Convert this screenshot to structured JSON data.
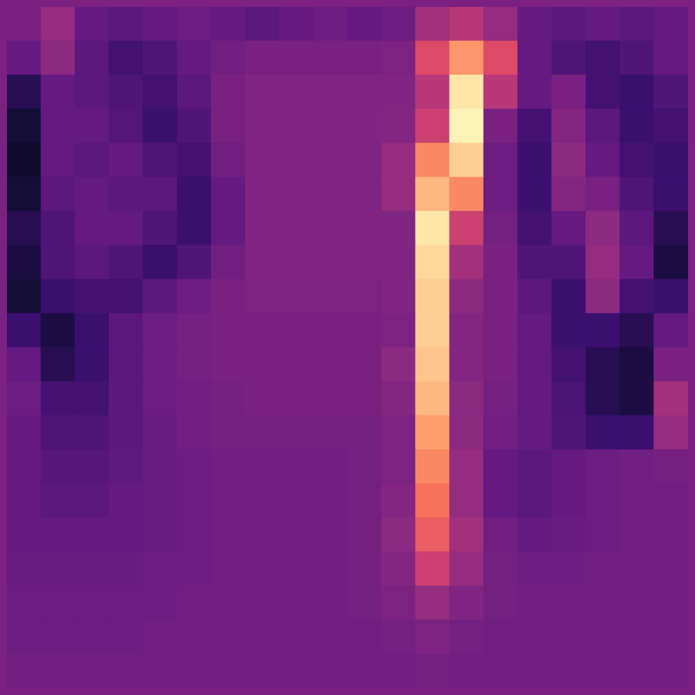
{
  "chart_data": {
    "type": "heatmap",
    "tick_labels": false,
    "color_range": [
      0,
      1
    ],
    "cells": [
      [
        0.35,
        0.42,
        0.3,
        0.28,
        0.3,
        0.32,
        0.3,
        0.28,
        0.3,
        0.32,
        0.3,
        0.32,
        0.45,
        0.5,
        0.42,
        0.3,
        0.28,
        0.3,
        0.28,
        0.3
      ],
      [
        0.3,
        0.4,
        0.28,
        0.22,
        0.25,
        0.3,
        0.33,
        0.35,
        0.35,
        0.35,
        0.35,
        0.36,
        0.6,
        0.78,
        0.6,
        0.3,
        0.25,
        0.22,
        0.25,
        0.3
      ],
      [
        0.15,
        0.3,
        0.28,
        0.25,
        0.22,
        0.28,
        0.35,
        0.37,
        0.37,
        0.37,
        0.37,
        0.37,
        0.5,
        0.95,
        0.5,
        0.3,
        0.35,
        0.22,
        0.2,
        0.25
      ],
      [
        0.1,
        0.3,
        0.3,
        0.26,
        0.2,
        0.25,
        0.35,
        0.37,
        0.37,
        0.37,
        0.37,
        0.38,
        0.55,
        0.98,
        0.35,
        0.22,
        0.38,
        0.28,
        0.2,
        0.22
      ],
      [
        0.08,
        0.3,
        0.28,
        0.3,
        0.25,
        0.22,
        0.33,
        0.37,
        0.37,
        0.37,
        0.37,
        0.42,
        0.75,
        0.9,
        0.32,
        0.2,
        0.4,
        0.3,
        0.22,
        0.2
      ],
      [
        0.1,
        0.28,
        0.3,
        0.28,
        0.28,
        0.2,
        0.3,
        0.37,
        0.37,
        0.37,
        0.37,
        0.42,
        0.85,
        0.75,
        0.32,
        0.2,
        0.38,
        0.35,
        0.25,
        0.2
      ],
      [
        0.15,
        0.25,
        0.3,
        0.3,
        0.25,
        0.2,
        0.3,
        0.37,
        0.37,
        0.37,
        0.37,
        0.37,
        0.95,
        0.55,
        0.34,
        0.22,
        0.3,
        0.4,
        0.28,
        0.15
      ],
      [
        0.12,
        0.25,
        0.28,
        0.25,
        0.2,
        0.25,
        0.33,
        0.37,
        0.37,
        0.37,
        0.37,
        0.37,
        0.92,
        0.45,
        0.35,
        0.25,
        0.25,
        0.42,
        0.3,
        0.12
      ],
      [
        0.1,
        0.2,
        0.22,
        0.22,
        0.28,
        0.32,
        0.35,
        0.36,
        0.36,
        0.36,
        0.36,
        0.37,
        0.9,
        0.4,
        0.35,
        0.28,
        0.2,
        0.4,
        0.22,
        0.2
      ],
      [
        0.2,
        0.12,
        0.2,
        0.28,
        0.32,
        0.34,
        0.35,
        0.35,
        0.35,
        0.35,
        0.35,
        0.36,
        0.9,
        0.38,
        0.35,
        0.3,
        0.2,
        0.2,
        0.15,
        0.3
      ],
      [
        0.3,
        0.15,
        0.2,
        0.28,
        0.32,
        0.34,
        0.35,
        0.35,
        0.35,
        0.35,
        0.35,
        0.4,
        0.88,
        0.38,
        0.35,
        0.3,
        0.22,
        0.15,
        0.12,
        0.35
      ],
      [
        0.32,
        0.22,
        0.22,
        0.28,
        0.32,
        0.33,
        0.34,
        0.35,
        0.35,
        0.35,
        0.35,
        0.38,
        0.85,
        0.4,
        0.34,
        0.3,
        0.24,
        0.15,
        0.12,
        0.45
      ],
      [
        0.3,
        0.25,
        0.25,
        0.28,
        0.31,
        0.33,
        0.34,
        0.34,
        0.34,
        0.34,
        0.34,
        0.36,
        0.8,
        0.4,
        0.33,
        0.3,
        0.25,
        0.2,
        0.2,
        0.42
      ],
      [
        0.3,
        0.27,
        0.27,
        0.29,
        0.31,
        0.32,
        0.33,
        0.33,
        0.33,
        0.33,
        0.34,
        0.36,
        0.75,
        0.42,
        0.3,
        0.28,
        0.3,
        0.32,
        0.33,
        0.34
      ],
      [
        0.3,
        0.28,
        0.28,
        0.3,
        0.31,
        0.32,
        0.33,
        0.33,
        0.33,
        0.33,
        0.34,
        0.38,
        0.7,
        0.42,
        0.3,
        0.28,
        0.3,
        0.32,
        0.33,
        0.33
      ],
      [
        0.3,
        0.3,
        0.3,
        0.3,
        0.31,
        0.32,
        0.33,
        0.33,
        0.33,
        0.33,
        0.34,
        0.4,
        0.65,
        0.45,
        0.33,
        0.3,
        0.31,
        0.32,
        0.33,
        0.33
      ],
      [
        0.31,
        0.31,
        0.31,
        0.31,
        0.32,
        0.32,
        0.33,
        0.33,
        0.33,
        0.33,
        0.34,
        0.38,
        0.55,
        0.42,
        0.34,
        0.32,
        0.32,
        0.33,
        0.33,
        0.33
      ],
      [
        0.32,
        0.32,
        0.32,
        0.32,
        0.32,
        0.33,
        0.33,
        0.33,
        0.33,
        0.33,
        0.34,
        0.36,
        0.42,
        0.37,
        0.34,
        0.33,
        0.33,
        0.33,
        0.33,
        0.33
      ],
      [
        0.32,
        0.32,
        0.32,
        0.32,
        0.33,
        0.33,
        0.33,
        0.33,
        0.33,
        0.33,
        0.33,
        0.34,
        0.36,
        0.34,
        0.33,
        0.33,
        0.33,
        0.33,
        0.33,
        0.33
      ],
      [
        0.33,
        0.33,
        0.33,
        0.33,
        0.33,
        0.33,
        0.33,
        0.33,
        0.33,
        0.33,
        0.33,
        0.33,
        0.34,
        0.33,
        0.33,
        0.33,
        0.33,
        0.33,
        0.33,
        0.33
      ]
    ]
  }
}
